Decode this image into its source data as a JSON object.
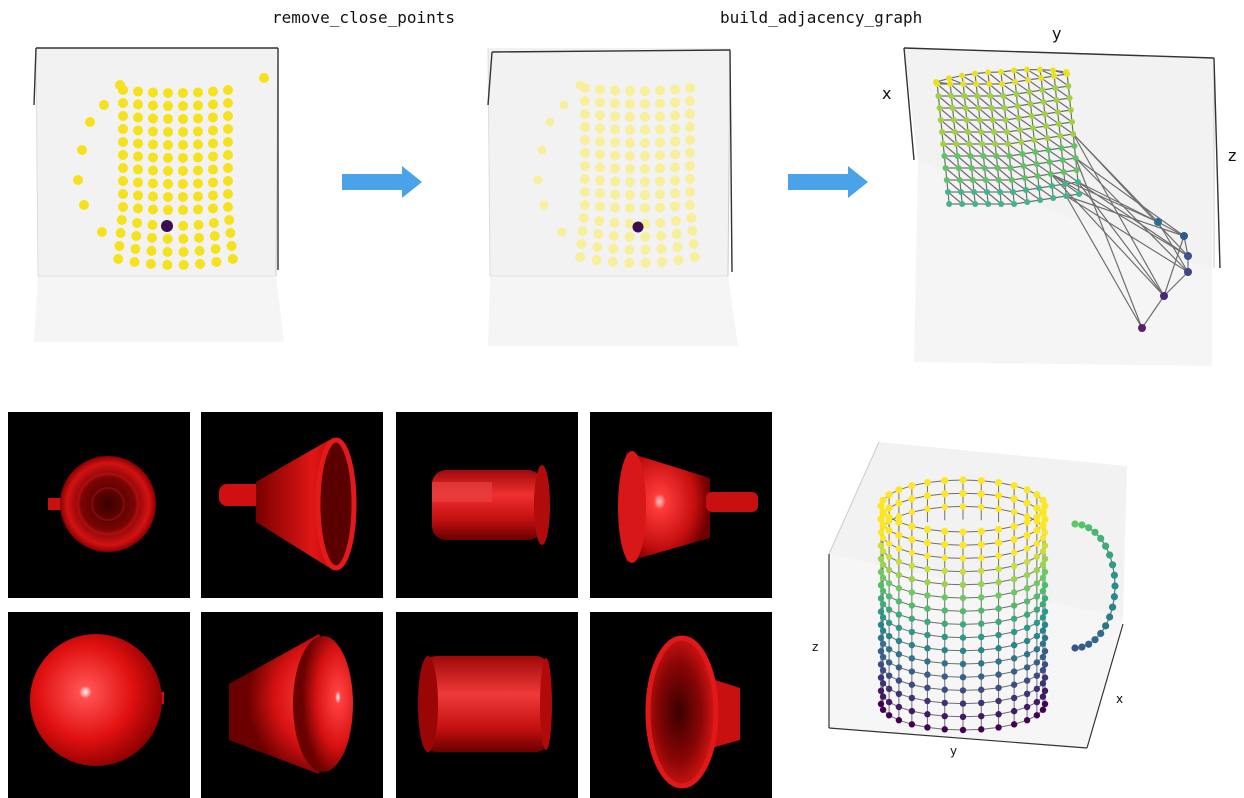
{
  "steps": {
    "first": "remove_close_points",
    "second": "build_adjacency_graph"
  },
  "graph_axes": {
    "x": "x",
    "y": "y",
    "z": "z"
  },
  "mug_axes": {
    "x": "x",
    "y": "y",
    "z": "z"
  },
  "colors": {
    "point_yellow": "#f5e21c",
    "point_faded": "#f7ef9a",
    "point_dark": "#3b0f4f",
    "arrow_blue": "#4aa3e8",
    "edge_gray": "#6e6e6e",
    "render_red": "#e01010",
    "render_bg": "#000000"
  },
  "icons": {
    "arrow_1": "right-arrow-icon",
    "arrow_2": "right-arrow-icon"
  }
}
